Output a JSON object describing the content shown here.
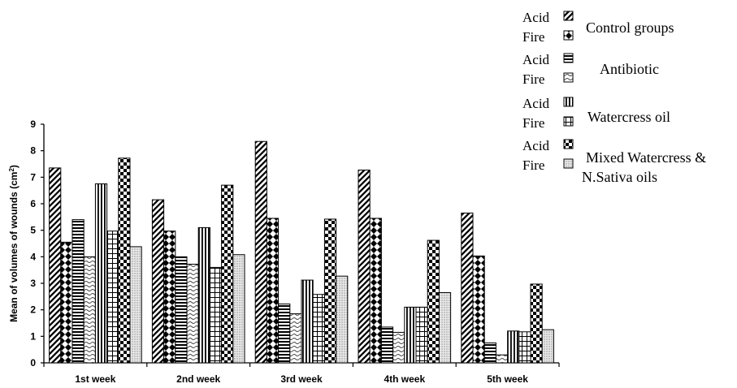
{
  "chart_data": {
    "type": "bar",
    "title": "",
    "xlabel": "",
    "ylabel": "Mean of volumes of wounds (cm",
    "ylabel_sup": "2",
    "ylabel_close": ")",
    "ylim": [
      0,
      9
    ],
    "yticks": [
      0,
      1,
      2,
      3,
      4,
      5,
      6,
      7,
      8,
      9
    ],
    "categories": [
      "1st week",
      "2nd week",
      "3rd week",
      "4th week",
      "5th week"
    ],
    "series": [
      {
        "name": "Control groups Acid",
        "pattern": "diag",
        "values": [
          7.35,
          6.15,
          8.35,
          7.27,
          5.65
        ]
      },
      {
        "name": "Control groups Fire",
        "pattern": "diamond",
        "values": [
          4.55,
          4.97,
          5.45,
          5.45,
          4.03
        ]
      },
      {
        "name": "Antibiotic Acid",
        "pattern": "hlines",
        "values": [
          5.4,
          4.0,
          2.22,
          1.35,
          0.75
        ]
      },
      {
        "name": "Antibiotic Fire",
        "pattern": "wave",
        "values": [
          4.0,
          3.72,
          1.85,
          1.15,
          0.3
        ]
      },
      {
        "name": "Watercress oil Acid",
        "pattern": "vlines",
        "values": [
          6.75,
          5.1,
          3.12,
          2.1,
          1.2
        ]
      },
      {
        "name": "Watercress oil Fire",
        "pattern": "grid",
        "values": [
          4.97,
          3.6,
          2.58,
          2.1,
          1.17
        ]
      },
      {
        "name": "Mixed Watercress & N.Sativa oils Acid",
        "pattern": "checker",
        "values": [
          7.72,
          6.7,
          5.42,
          4.62,
          2.97
        ]
      },
      {
        "name": "Mixed Watercress & N.Sativa oils Fire",
        "pattern": "dots",
        "values": [
          4.38,
          4.08,
          3.27,
          2.65,
          1.25
        ]
      }
    ],
    "legend_position": "top-right",
    "legend": [
      {
        "label": "Control groups",
        "acid": "Acid",
        "fire": "Fire",
        "acid_pattern": "diag",
        "fire_pattern": "diamond"
      },
      {
        "label": "Antibiotic",
        "acid": "Acid",
        "fire": "Fire",
        "acid_pattern": "hlines",
        "fire_pattern": "wave"
      },
      {
        "label": "Watercress oil",
        "acid": "Acid",
        "fire": "Fire",
        "acid_pattern": "vlines",
        "fire_pattern": "grid"
      },
      {
        "label": "Mixed Watercress &",
        "label2": "N.Sativa oils",
        "acid": "Acid",
        "fire": "Fire",
        "acid_pattern": "checker",
        "fire_pattern": "dots"
      }
    ]
  }
}
